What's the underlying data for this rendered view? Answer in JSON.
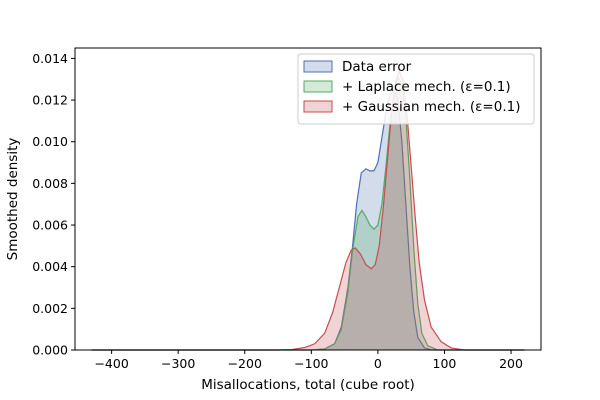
{
  "chart_data": {
    "type": "area",
    "xlabel": "Misallocations, total (cube root)",
    "ylabel": "Smoothed density",
    "xlim": [
      -455,
      245
    ],
    "ylim": [
      0,
      0.0145
    ],
    "x_ticks": [
      -400,
      -300,
      -200,
      -100,
      0,
      100,
      200
    ],
    "x_tick_labels": [
      "−400",
      "−300",
      "−200",
      "−100",
      "0",
      "100",
      "200"
    ],
    "y_ticks": [
      0,
      0.002,
      0.004,
      0.006,
      0.008,
      0.01,
      0.012,
      0.014
    ],
    "y_tick_labels": [
      "0.000",
      "0.002",
      "0.004",
      "0.006",
      "0.008",
      "0.010",
      "0.012",
      "0.014"
    ],
    "grid": false,
    "legend_position": "top-right",
    "series": [
      {
        "name": "Data error",
        "color": "#4c72b0",
        "points": [
          [
            -430,
            0
          ],
          [
            -300,
            0
          ],
          [
            -150,
            0
          ],
          [
            -100,
            0
          ],
          [
            -80,
            5e-05
          ],
          [
            -65,
            0.0003
          ],
          [
            -55,
            0.0011
          ],
          [
            -45,
            0.003
          ],
          [
            -38,
            0.005
          ],
          [
            -32,
            0.007
          ],
          [
            -25,
            0.0085
          ],
          [
            -18,
            0.0087
          ],
          [
            -12,
            0.0086
          ],
          [
            -6,
            0.0086
          ],
          [
            0,
            0.009
          ],
          [
            6,
            0.0102
          ],
          [
            12,
            0.0114
          ],
          [
            18,
            0.0122
          ],
          [
            24,
            0.0125
          ],
          [
            30,
            0.012
          ],
          [
            36,
            0.01
          ],
          [
            42,
            0.007
          ],
          [
            48,
            0.004
          ],
          [
            54,
            0.0018
          ],
          [
            60,
            0.0006
          ],
          [
            70,
            0.0001
          ],
          [
            80,
            0
          ],
          [
            150,
            0
          ],
          [
            220,
            0
          ]
        ]
      },
      {
        "name": "+ Laplace mech. (ε=0.1)",
        "color": "#55a868",
        "points": [
          [
            -430,
            0
          ],
          [
            -300,
            0
          ],
          [
            -150,
            0
          ],
          [
            -100,
            0
          ],
          [
            -80,
            5e-05
          ],
          [
            -65,
            0.0003
          ],
          [
            -55,
            0.001
          ],
          [
            -45,
            0.0028
          ],
          [
            -38,
            0.0048
          ],
          [
            -30,
            0.0064
          ],
          [
            -24,
            0.0067
          ],
          [
            -18,
            0.0064
          ],
          [
            -12,
            0.006
          ],
          [
            -6,
            0.0058
          ],
          [
            0,
            0.006
          ],
          [
            6,
            0.007
          ],
          [
            12,
            0.0088
          ],
          [
            18,
            0.0108
          ],
          [
            24,
            0.0122
          ],
          [
            30,
            0.0131
          ],
          [
            36,
            0.0128
          ],
          [
            42,
            0.0112
          ],
          [
            48,
            0.0082
          ],
          [
            54,
            0.0048
          ],
          [
            60,
            0.0022
          ],
          [
            66,
            0.0008
          ],
          [
            75,
            0.0002
          ],
          [
            90,
            0
          ],
          [
            150,
            0
          ],
          [
            220,
            0
          ]
        ]
      },
      {
        "name": "+ Gaussian mech. (ε=0.1)",
        "color": "#c44e52",
        "points": [
          [
            -430,
            0
          ],
          [
            -300,
            0
          ],
          [
            -200,
            0
          ],
          [
            -150,
            0
          ],
          [
            -130,
            2e-05
          ],
          [
            -110,
            0.00012
          ],
          [
            -95,
            0.0003
          ],
          [
            -80,
            0.0008
          ],
          [
            -68,
            0.0018
          ],
          [
            -58,
            0.003
          ],
          [
            -48,
            0.0042
          ],
          [
            -40,
            0.0048
          ],
          [
            -34,
            0.0049
          ],
          [
            -26,
            0.0046
          ],
          [
            -18,
            0.0041
          ],
          [
            -10,
            0.0039
          ],
          [
            -4,
            0.0041
          ],
          [
            2,
            0.005
          ],
          [
            8,
            0.0068
          ],
          [
            14,
            0.009
          ],
          [
            20,
            0.0112
          ],
          [
            26,
            0.0128
          ],
          [
            32,
            0.0134
          ],
          [
            38,
            0.0129
          ],
          [
            44,
            0.0112
          ],
          [
            50,
            0.0088
          ],
          [
            56,
            0.0064
          ],
          [
            62,
            0.0042
          ],
          [
            70,
            0.0024
          ],
          [
            80,
            0.0011
          ],
          [
            95,
            0.0004
          ],
          [
            110,
            0.0001
          ],
          [
            130,
            0
          ],
          [
            220,
            0
          ]
        ]
      }
    ]
  }
}
